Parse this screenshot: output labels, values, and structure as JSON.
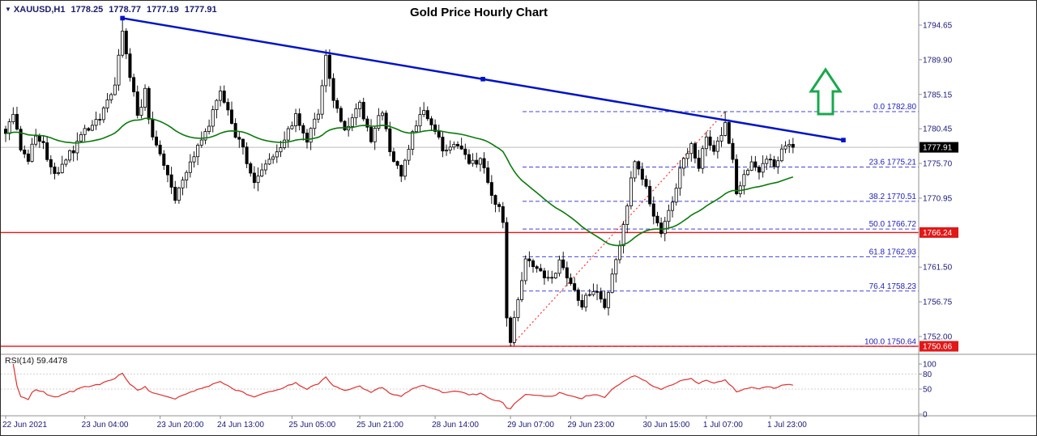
{
  "header": {
    "symbol": "XAUUSD,H1",
    "open": "1778.25",
    "high": "1778.77",
    "low": "1777.19",
    "close": "1777.91",
    "title": "Gold Price Hourly Chart"
  },
  "rsi": {
    "label": "RSI(14) 59.4478",
    "period": 14,
    "last_value": 59.4478,
    "axis_labels": [
      "100",
      "80",
      "50",
      "0"
    ],
    "level_lines": [
      80,
      50
    ]
  },
  "price_axis": {
    "labels": [
      "1794.65",
      "1789.90",
      "1785.15",
      "1780.45",
      "1775.70",
      "1770.95",
      "1761.50",
      "1756.75",
      "1752.00"
    ],
    "tags": [
      {
        "text": "1777.91",
        "price": 1777.91,
        "kind": "current"
      },
      {
        "text": "1766.24",
        "price": 1766.24,
        "kind": "alert"
      },
      {
        "text": "1750.66",
        "price": 1750.66,
        "kind": "alert"
      }
    ]
  },
  "time_axis": {
    "labels": [
      {
        "text": "22 Jun 2021",
        "bar": 0
      },
      {
        "text": "23 Jun 04:00",
        "bar": 21
      },
      {
        "text": "23 Jun 20:00",
        "bar": 41
      },
      {
        "text": "24 Jun 13:00",
        "bar": 57
      },
      {
        "text": "25 Jun 05:00",
        "bar": 76
      },
      {
        "text": "25 Jun 21:00",
        "bar": 94
      },
      {
        "text": "28 Jun 14:00",
        "bar": 114
      },
      {
        "text": "29 Jun 07:00",
        "bar": 134
      },
      {
        "text": "29 Jun 23:00",
        "bar": 150
      },
      {
        "text": "30 Jun 15:00",
        "bar": 170
      },
      {
        "text": "1 Jul 07:00",
        "bar": 186
      },
      {
        "text": "1 Jul 23:00",
        "bar": 203
      }
    ]
  },
  "colors": {
    "bull": "#ffffff",
    "bear": "#000000",
    "wick": "#000000",
    "ma": "#0b7a0b",
    "trend": "#0013c8",
    "uptrend": "#ff2020",
    "fib_line": "#4444d6",
    "fib_text": "#2222bb",
    "red_line": "#f01414",
    "tag_current": "#000000",
    "tag_alert": "#e01818",
    "axis_text": "#1a1a78",
    "grid": "#909090",
    "cur_price_line": "#bbbbbb",
    "rsi_line": "#e03030",
    "arrow": "#1aa84c"
  },
  "chart_data": {
    "type": "candlestick",
    "symbol": "XAUUSD",
    "timeframe": "H1",
    "title": "Gold Price Hourly Chart",
    "bars": 210,
    "ylim": [
      1749.5,
      1797.9
    ],
    "close_keypoints": [
      [
        0,
        1779.5
      ],
      [
        2,
        1782.5
      ],
      [
        4,
        1778.0
      ],
      [
        6,
        1776.0
      ],
      [
        8,
        1779.5
      ],
      [
        10,
        1778.0
      ],
      [
        12,
        1775.0
      ],
      [
        14,
        1774.0
      ],
      [
        16,
        1776.5
      ],
      [
        18,
        1777.5
      ],
      [
        20,
        1779.5
      ],
      [
        22,
        1780.5
      ],
      [
        24,
        1781.5
      ],
      [
        26,
        1783.0
      ],
      [
        29,
        1786.5
      ],
      [
        31,
        1794.0
      ],
      [
        33,
        1788.0
      ],
      [
        35,
        1782.0
      ],
      [
        37,
        1785.5
      ],
      [
        39,
        1779.0
      ],
      [
        42,
        1775.5
      ],
      [
        45,
        1770.8
      ],
      [
        48,
        1775.0
      ],
      [
        52,
        1778.5
      ],
      [
        55,
        1782.5
      ],
      [
        57,
        1786.0
      ],
      [
        60,
        1781.0
      ],
      [
        63,
        1777.5
      ],
      [
        66,
        1773.0
      ],
      [
        70,
        1776.0
      ],
      [
        74,
        1779.0
      ],
      [
        77,
        1782.0
      ],
      [
        80,
        1778.5
      ],
      [
        83,
        1783.0
      ],
      [
        85,
        1790.0
      ],
      [
        87,
        1784.0
      ],
      [
        90,
        1780.5
      ],
      [
        94,
        1783.5
      ],
      [
        97,
        1779.0
      ],
      [
        100,
        1783.0
      ],
      [
        102,
        1777.0
      ],
      [
        105,
        1774.5
      ],
      [
        108,
        1779.5
      ],
      [
        111,
        1783.5
      ],
      [
        114,
        1780.0
      ],
      [
        117,
        1777.0
      ],
      [
        120,
        1778.5
      ],
      [
        123,
        1775.5
      ],
      [
        126,
        1776.5
      ],
      [
        128,
        1772.5
      ],
      [
        131,
        1769.5
      ],
      [
        132,
        1768.0
      ],
      [
        133,
        1755.0
      ],
      [
        134,
        1751.5
      ],
      [
        136,
        1757.5
      ],
      [
        138,
        1762.5
      ],
      [
        141,
        1761.0
      ],
      [
        144,
        1759.5
      ],
      [
        147,
        1762.0
      ],
      [
        150,
        1759.0
      ],
      [
        153,
        1756.5
      ],
      [
        156,
        1758.5
      ],
      [
        159,
        1756.0
      ],
      [
        162,
        1762.0
      ],
      [
        165,
        1770.0
      ],
      [
        167,
        1776.5
      ],
      [
        170,
        1772.0
      ],
      [
        172,
        1768.0
      ],
      [
        174,
        1766.5
      ],
      [
        177,
        1770.5
      ],
      [
        179,
        1775.0
      ],
      [
        182,
        1778.0
      ],
      [
        184,
        1775.5
      ],
      [
        186,
        1779.5
      ],
      [
        188,
        1777.0
      ],
      [
        191,
        1781.5
      ],
      [
        193,
        1776.5
      ],
      [
        194,
        1771.5
      ],
      [
        196,
        1774.5
      ],
      [
        198,
        1776.0
      ],
      [
        200,
        1774.0
      ],
      [
        202,
        1776.5
      ],
      [
        204,
        1775.5
      ],
      [
        206,
        1777.5
      ],
      [
        209,
        1777.9
      ]
    ],
    "anchors": [
      {
        "i": 31,
        "high": 1795.6
      },
      {
        "i": 85,
        "high": 1791.3
      },
      {
        "i": 134,
        "low": 1750.64
      },
      {
        "i": 191,
        "high": 1782.8
      },
      {
        "i": 209,
        "close": 1777.91
      }
    ],
    "overlays": {
      "ma": {
        "type": "EMA",
        "period": 50
      },
      "down_trendline": {
        "from_bar": 31,
        "from_price": 1795.6,
        "to_x": 1040,
        "to_price": 1778.9
      },
      "up_trendline": {
        "from_bar": 134,
        "from_price": 1750.64,
        "to_bar": 191,
        "to_price": 1782.8,
        "style": "dotted"
      },
      "fib_levels": [
        {
          "level": "0.0",
          "price": 1782.8
        },
        {
          "level": "23.6",
          "price": 1775.21
        },
        {
          "level": "38.2",
          "price": 1770.51
        },
        {
          "level": "50.0",
          "price": 1766.72
        },
        {
          "level": "61.8",
          "price": 1762.93
        },
        {
          "level": "76.4",
          "price": 1758.23
        },
        {
          "level": "100.0",
          "price": 1750.64
        }
      ],
      "horizontal_lines": [
        1766.24,
        1750.66
      ],
      "last_price": 1777.91
    }
  }
}
